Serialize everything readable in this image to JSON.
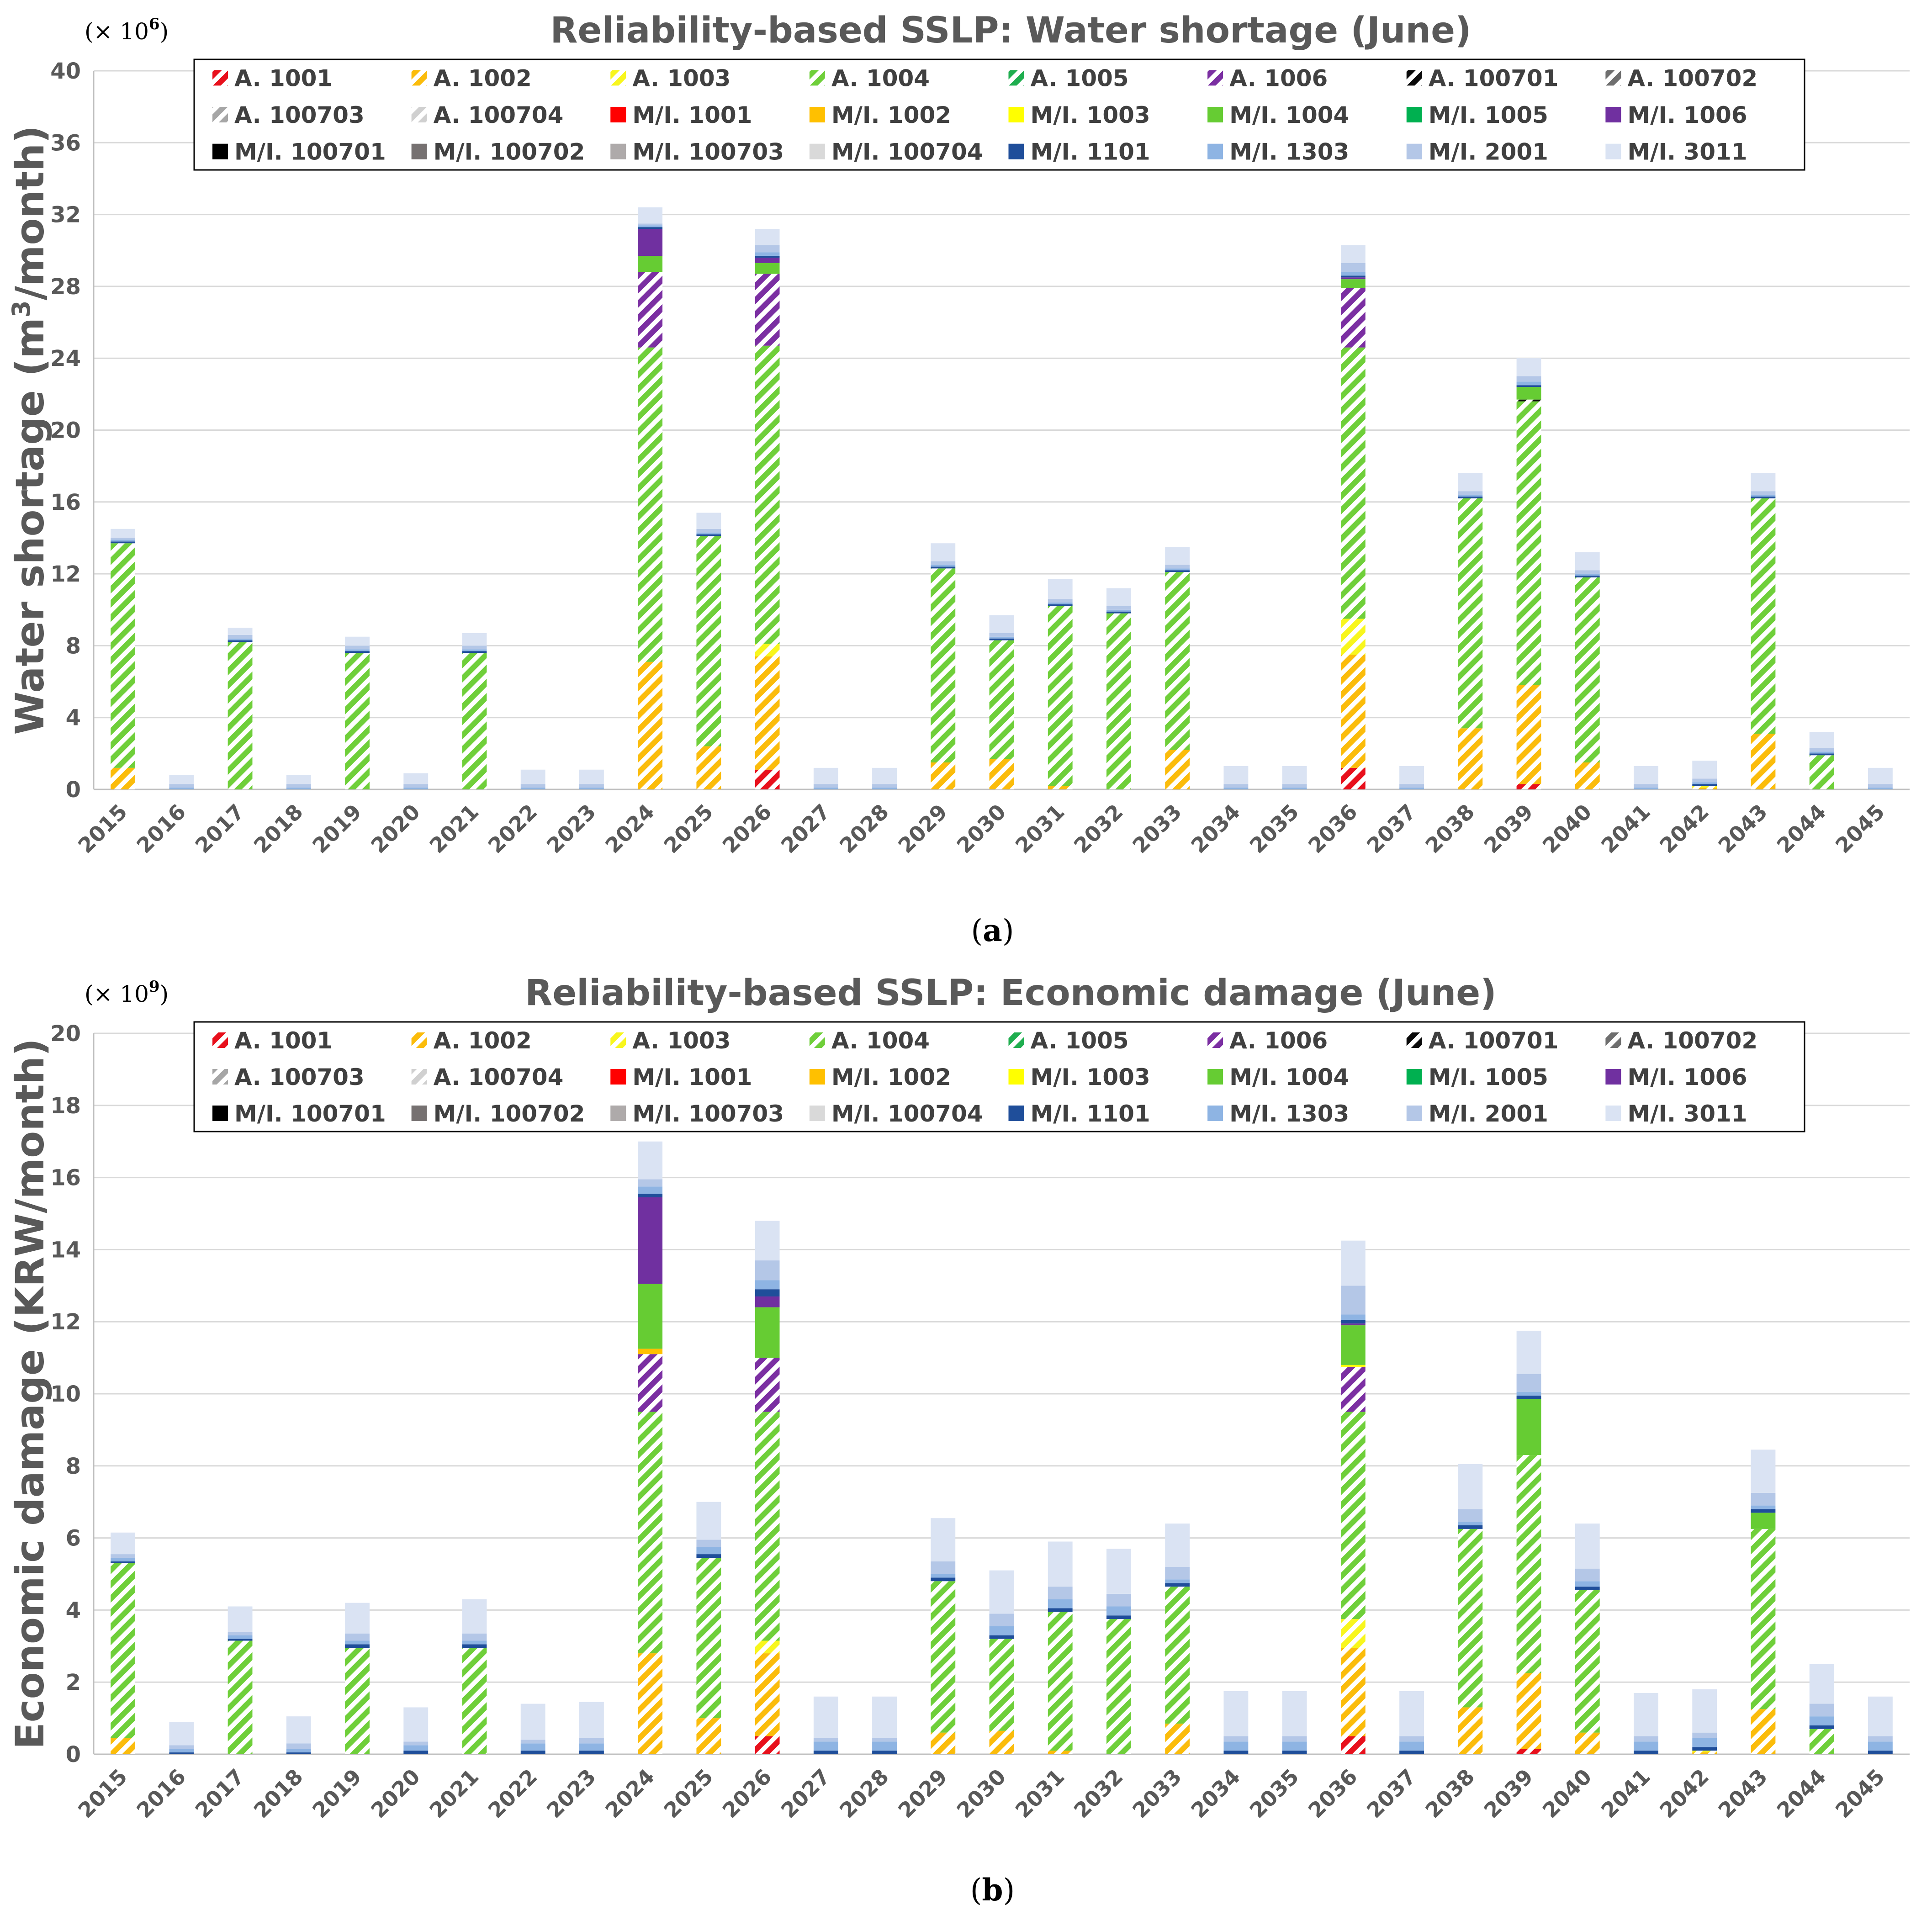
{
  "colors": {
    "A. 1001": "#e8101c",
    "A. 1002": "#fbbc0b",
    "A. 1003": "#f8f61d",
    "A. 1004": "#6fcf3a",
    "A. 1005": "#1fae4f",
    "A. 1006": "#7b2fa2",
    "A. 100701": "#0a0a0a",
    "A. 100702": "#6f6f6f",
    "A. 100703": "#a6a6a6",
    "A. 100704": "#d0d0d0",
    "M/I. 1001": "#ff0000",
    "M/I. 1002": "#ffc000",
    "M/I. 1003": "#ffff00",
    "M/I. 1004": "#66cc33",
    "M/I. 1005": "#00b050",
    "M/I. 1006": "#7030a0",
    "M/I. 100701": "#000000",
    "M/I. 100702": "#767171",
    "M/I. 100703": "#aeaaaa",
    "M/I. 100704": "#d9d9d9",
    "M/I. 1101": "#1f4e9a",
    "M/I. 1303": "#8eb4e3",
    "M/I. 2001": "#b4c7e7",
    "M/I. 3011": "#dae3f3"
  },
  "chart_data": [
    {
      "type": "bar",
      "stacked": true,
      "title": "Reliability-based SSLP: Water shortage (June)",
      "caption": "a",
      "multiplier_base": "(× 10",
      "multiplier_exp": "6",
      "multiplier_close": ")",
      "ylabel_main": "Water shortage (m",
      "ylabel_sup": "3",
      "ylabel_end": "/month)",
      "ylim": [
        0,
        40
      ],
      "yticks": [
        "0",
        "4",
        "8",
        "12",
        "16",
        "20",
        "24",
        "28",
        "32",
        "36",
        "40"
      ],
      "grid": true,
      "legend": {
        "position": "top-right",
        "columns": 8
      },
      "legend_items": [
        "A. 1001",
        "A. 1002",
        "A. 1003",
        "A. 1004",
        "A. 1005",
        "A. 1006",
        "A. 100701",
        "A. 100702",
        "A. 100703",
        "A. 100704",
        "M/I. 1001",
        "M/I. 1002",
        "M/I. 1003",
        "M/I. 1004",
        "M/I. 1005",
        "M/I. 1006",
        "M/I. 100701",
        "M/I. 100702",
        "M/I. 100703",
        "M/I. 100704",
        "M/I. 1101",
        "M/I. 1303",
        "M/I. 2001",
        "M/I. 3011"
      ],
      "categories": [
        "2015",
        "2016",
        "2017",
        "2018",
        "2019",
        "2020",
        "2021",
        "2022",
        "2023",
        "2024",
        "2025",
        "2026",
        "2027",
        "2028",
        "2029",
        "2030",
        "2031",
        "2032",
        "2033",
        "2034",
        "2035",
        "2036",
        "2037",
        "2038",
        "2039",
        "2040",
        "2041",
        "2042",
        "2043",
        "2044",
        "2045"
      ],
      "series": [
        {
          "name": "A. 1001",
          "values": [
            0,
            0,
            0,
            0,
            0,
            0,
            0,
            0,
            0,
            0,
            0,
            1.1,
            0,
            0,
            0,
            0,
            0,
            0,
            0,
            0,
            0,
            1.2,
            0,
            0,
            0.3,
            0,
            0,
            0,
            0,
            0,
            0
          ]
        },
        {
          "name": "A. 1002",
          "values": [
            1.2,
            0,
            0,
            0,
            0,
            0,
            0,
            0,
            0,
            7.1,
            2.4,
            6.3,
            0,
            0,
            1.5,
            1.7,
            0.2,
            0,
            2.2,
            0,
            0,
            6.3,
            0,
            3.4,
            5.5,
            1.5,
            0,
            0.1,
            3.1,
            0,
            0
          ]
        },
        {
          "name": "A. 1003",
          "values": [
            0,
            0,
            0,
            0,
            0,
            0,
            0,
            0,
            0,
            0,
            0,
            0.7,
            0,
            0,
            0,
            0,
            0,
            0,
            0,
            0,
            0,
            2.0,
            0,
            0,
            0,
            0,
            0,
            0.1,
            0,
            0,
            0
          ]
        },
        {
          "name": "A. 1004",
          "values": [
            12.5,
            0,
            8.2,
            0,
            7.6,
            0,
            7.6,
            0,
            0,
            17.5,
            11.7,
            16.6,
            0,
            0,
            10.8,
            6.6,
            10.0,
            9.8,
            9.9,
            0,
            0,
            15.1,
            0,
            12.8,
            15.8,
            10.3,
            0,
            0,
            13.1,
            1.9,
            0
          ]
        },
        {
          "name": "A. 1005",
          "values": [
            0,
            0,
            0,
            0,
            0,
            0,
            0,
            0,
            0,
            0,
            0,
            0,
            0,
            0,
            0,
            0,
            0,
            0,
            0,
            0,
            0,
            0,
            0,
            0,
            0,
            0,
            0,
            0,
            0,
            0,
            0
          ]
        },
        {
          "name": "A. 1006",
          "values": [
            0,
            0,
            0,
            0,
            0,
            0,
            0,
            0,
            0,
            4.2,
            0,
            4.0,
            0,
            0,
            0,
            0,
            0,
            0,
            0,
            0,
            0,
            3.3,
            0,
            0,
            0,
            0,
            0,
            0,
            0,
            0,
            0
          ]
        },
        {
          "name": "A. 100701",
          "values": [
            0,
            0,
            0,
            0,
            0,
            0,
            0,
            0,
            0,
            0,
            0,
            0,
            0,
            0,
            0,
            0,
            0,
            0,
            0,
            0,
            0,
            0,
            0,
            0,
            0.1,
            0,
            0,
            0,
            0,
            0,
            0
          ]
        },
        {
          "name": "M/I. 1004",
          "values": [
            0,
            0,
            0,
            0,
            0,
            0,
            0,
            0,
            0,
            0.9,
            0,
            0.6,
            0,
            0,
            0,
            0,
            0,
            0,
            0,
            0,
            0,
            0.5,
            0,
            0,
            0.7,
            0,
            0,
            0,
            0,
            0,
            0
          ]
        },
        {
          "name": "M/I. 1006",
          "values": [
            0,
            0,
            0,
            0,
            0,
            0,
            0,
            0,
            0,
            1.5,
            0,
            0.3,
            0,
            0,
            0,
            0,
            0,
            0,
            0,
            0,
            0,
            0.1,
            0,
            0,
            0,
            0,
            0,
            0,
            0,
            0,
            0
          ]
        },
        {
          "name": "M/I. 1101",
          "values": [
            0.1,
            0,
            0.1,
            0,
            0.1,
            0,
            0.1,
            0,
            0,
            0.1,
            0.1,
            0.1,
            0,
            0,
            0.1,
            0.1,
            0.1,
            0.1,
            0.1,
            0,
            0,
            0.1,
            0,
            0.1,
            0.1,
            0.1,
            0,
            0.1,
            0.1,
            0.1,
            0
          ]
        },
        {
          "name": "M/I. 1303",
          "values": [
            0.1,
            0.1,
            0.1,
            0.1,
            0.1,
            0.1,
            0.1,
            0.1,
            0.1,
            0.1,
            0.1,
            0.2,
            0.1,
            0.1,
            0.1,
            0.1,
            0.1,
            0.1,
            0.1,
            0.1,
            0.1,
            0.2,
            0.1,
            0.1,
            0.2,
            0.1,
            0.1,
            0.1,
            0.1,
            0.1,
            0.1
          ]
        },
        {
          "name": "M/I. 2001",
          "values": [
            0.1,
            0.2,
            0.2,
            0.2,
            0.2,
            0.2,
            0.2,
            0.2,
            0.2,
            0.1,
            0.2,
            0.4,
            0.2,
            0.2,
            0.2,
            0.2,
            0.2,
            0.2,
            0.2,
            0.2,
            0.2,
            0.5,
            0.2,
            0.2,
            0.3,
            0.2,
            0.2,
            0.2,
            0.2,
            0.2,
            0.2
          ]
        },
        {
          "name": "M/I. 3011",
          "values": [
            0.5,
            0.5,
            0.4,
            0.5,
            0.5,
            0.6,
            0.7,
            0.8,
            0.8,
            0.9,
            0.9,
            0.9,
            0.9,
            0.9,
            1.0,
            1.0,
            1.1,
            1.0,
            1.0,
            1.0,
            1.0,
            1.0,
            1.0,
            1.0,
            1.0,
            1.0,
            1.0,
            1.0,
            1.0,
            0.9,
            0.9
          ]
        }
      ]
    },
    {
      "type": "bar",
      "stacked": true,
      "title": "Reliability-based SSLP: Economic damage (June)",
      "caption": "b",
      "multiplier_base": "(× 10",
      "multiplier_exp": "9",
      "multiplier_close": ")",
      "ylabel_main": "Economic damage (KRW/month)",
      "ylabel_sup": "",
      "ylabel_end": "",
      "ylim": [
        0,
        20
      ],
      "yticks": [
        "0",
        "2",
        "4",
        "6",
        "8",
        "10",
        "12",
        "14",
        "16",
        "18",
        "20"
      ],
      "grid": true,
      "legend": {
        "position": "top-right",
        "columns": 8
      },
      "legend_items": [
        "A. 1001",
        "A. 1002",
        "A. 1003",
        "A. 1004",
        "A. 1005",
        "A. 1006",
        "A. 100701",
        "A. 100702",
        "A. 100703",
        "A. 100704",
        "M/I. 1001",
        "M/I. 1002",
        "M/I. 1003",
        "M/I. 1004",
        "M/I. 1005",
        "M/I. 1006",
        "M/I. 100701",
        "M/I. 100702",
        "M/I. 100703",
        "M/I. 100704",
        "M/I. 1101",
        "M/I. 1303",
        "M/I. 2001",
        "M/I. 3011"
      ],
      "categories": [
        "2015",
        "2016",
        "2017",
        "2018",
        "2019",
        "2020",
        "2021",
        "2022",
        "2023",
        "2024",
        "2025",
        "2026",
        "2027",
        "2028",
        "2029",
        "2030",
        "2031",
        "2032",
        "2033",
        "2034",
        "2035",
        "2036",
        "2037",
        "2038",
        "2039",
        "2040",
        "2041",
        "2042",
        "2043",
        "2044",
        "2045"
      ],
      "series": [
        {
          "name": "A. 1001",
          "values": [
            0,
            0,
            0,
            0,
            0,
            0,
            0,
            0,
            0,
            0,
            0,
            0.5,
            0,
            0,
            0,
            0,
            0,
            0,
            0,
            0,
            0,
            0.5,
            0,
            0,
            0.15,
            0,
            0,
            0,
            0,
            0,
            0
          ]
        },
        {
          "name": "A. 1002",
          "values": [
            0.45,
            0,
            0,
            0,
            0,
            0,
            0,
            0,
            0,
            2.8,
            1.0,
            2.3,
            0,
            0,
            0.6,
            0.65,
            0.1,
            0,
            0.85,
            0,
            0,
            2.45,
            0,
            1.3,
            2.1,
            0.6,
            0,
            0.05,
            1.25,
            0,
            0
          ]
        },
        {
          "name": "A. 1003",
          "values": [
            0,
            0,
            0,
            0,
            0,
            0,
            0,
            0,
            0,
            0,
            0,
            0.35,
            0,
            0,
            0,
            0,
            0,
            0,
            0,
            0,
            0,
            0.8,
            0,
            0,
            0,
            0,
            0,
            0.05,
            0,
            0,
            0
          ]
        },
        {
          "name": "A. 1004",
          "values": [
            4.85,
            0,
            3.15,
            0,
            2.95,
            0,
            2.95,
            0,
            0,
            6.7,
            4.45,
            6.35,
            0,
            0,
            4.2,
            2.55,
            3.85,
            3.75,
            3.8,
            0,
            0,
            5.75,
            0,
            4.95,
            6.05,
            3.95,
            0,
            0,
            5.0,
            0.7,
            0
          ]
        },
        {
          "name": "A. 1006",
          "values": [
            0,
            0,
            0,
            0,
            0,
            0,
            0,
            0,
            0,
            1.6,
            0,
            1.5,
            0,
            0,
            0,
            0,
            0,
            0,
            0,
            0,
            0,
            1.25,
            0,
            0,
            0,
            0,
            0,
            0,
            0,
            0,
            0
          ]
        },
        {
          "name": "M/I. 1002",
          "values": [
            0,
            0,
            0,
            0,
            0,
            0,
            0,
            0,
            0,
            0.15,
            0,
            0,
            0,
            0,
            0,
            0,
            0,
            0,
            0,
            0,
            0,
            0,
            0,
            0,
            0,
            0,
            0,
            0,
            0,
            0,
            0
          ]
        },
        {
          "name": "M/I. 1003",
          "values": [
            0,
            0,
            0,
            0,
            0,
            0,
            0,
            0,
            0,
            0,
            0,
            0,
            0,
            0,
            0,
            0,
            0,
            0,
            0,
            0,
            0,
            0.05,
            0,
            0,
            0,
            0,
            0,
            0,
            0,
            0,
            0
          ]
        },
        {
          "name": "M/I. 1004",
          "values": [
            0,
            0,
            0,
            0,
            0,
            0,
            0,
            0,
            0,
            1.8,
            0,
            1.4,
            0,
            0,
            0,
            0,
            0,
            0,
            0,
            0,
            0,
            1.1,
            0,
            0,
            1.55,
            0,
            0,
            0,
            0.45,
            0,
            0
          ]
        },
        {
          "name": "M/I. 1006",
          "values": [
            0,
            0,
            0,
            0,
            0,
            0,
            0,
            0,
            0,
            2.4,
            0,
            0.3,
            0,
            0,
            0,
            0,
            0,
            0,
            0,
            0,
            0,
            0.05,
            0,
            0,
            0,
            0,
            0,
            0,
            0,
            0,
            0
          ]
        },
        {
          "name": "M/I. 1101",
          "values": [
            0.05,
            0.05,
            0.05,
            0.05,
            0.1,
            0.1,
            0.1,
            0.1,
            0.1,
            0.1,
            0.1,
            0.2,
            0.1,
            0.1,
            0.1,
            0.1,
            0.1,
            0.1,
            0.1,
            0.1,
            0.1,
            0.1,
            0.1,
            0.1,
            0.1,
            0.1,
            0.1,
            0.1,
            0.1,
            0.1,
            0.1
          ]
        },
        {
          "name": "M/I. 1303",
          "values": [
            0.1,
            0.1,
            0.1,
            0.1,
            0.1,
            0.15,
            0.1,
            0.2,
            0.2,
            0.2,
            0.2,
            0.25,
            0.25,
            0.25,
            0.1,
            0.25,
            0.25,
            0.25,
            0.1,
            0.25,
            0.25,
            0.15,
            0.25,
            0.1,
            0.1,
            0.15,
            0.25,
            0.25,
            0.1,
            0.25,
            0.25
          ]
        },
        {
          "name": "M/I. 2001",
          "values": [
            0.1,
            0.1,
            0.1,
            0.15,
            0.2,
            0.1,
            0.2,
            0.1,
            0.15,
            0.2,
            0.2,
            0.55,
            0.1,
            0.1,
            0.35,
            0.35,
            0.35,
            0.35,
            0.35,
            0.15,
            0.15,
            0.8,
            0.15,
            0.35,
            0.5,
            0.35,
            0.15,
            0.15,
            0.35,
            0.35,
            0.15
          ]
        },
        {
          "name": "M/I. 3011",
          "values": [
            0.6,
            0.65,
            0.7,
            0.75,
            0.85,
            0.95,
            0.95,
            1.0,
            1.0,
            1.05,
            1.05,
            1.1,
            1.15,
            1.15,
            1.2,
            1.2,
            1.25,
            1.25,
            1.2,
            1.25,
            1.25,
            1.25,
            1.25,
            1.25,
            1.2,
            1.25,
            1.2,
            1.2,
            1.2,
            1.1,
            1.1
          ]
        }
      ]
    }
  ]
}
